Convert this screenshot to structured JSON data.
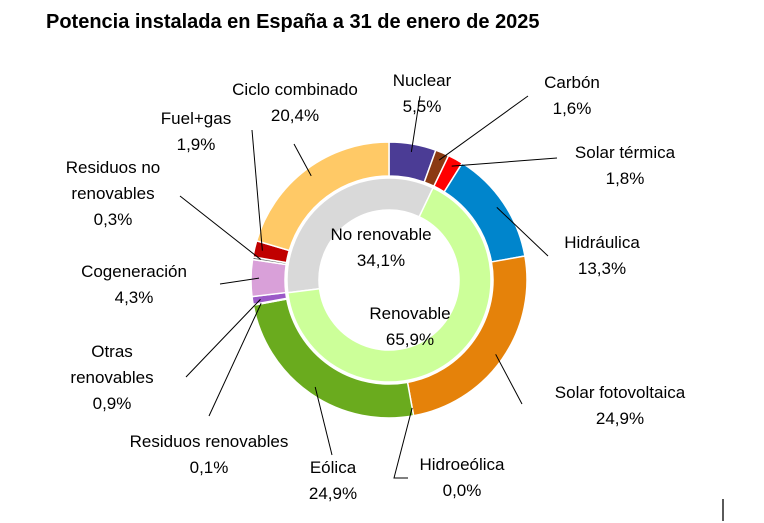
{
  "chart_data": {
    "type": "pie",
    "subtype": "double-donut",
    "title": "Potencia instalada en España a 31 de enero de 2025",
    "inner_ring": [
      {
        "name": "No renovable",
        "value": 34.1,
        "value_label": "34,1%",
        "color": "#d9d9d9"
      },
      {
        "name": "Renovable",
        "value": 65.9,
        "value_label": "65,9%",
        "color": "#ccff99"
      }
    ],
    "outer_ring": [
      {
        "name": "Nuclear",
        "value": 5.5,
        "value_label": "5,5%",
        "color": "#4b3c95"
      },
      {
        "name": "Carbón",
        "value": 1.6,
        "value_label": "1,6%",
        "color": "#8b3a12"
      },
      {
        "name": "Solar térmica",
        "value": 1.8,
        "value_label": "1,8%",
        "color": "#ff0000"
      },
      {
        "name": "Hidráulica",
        "value": 13.3,
        "value_label": "13,3%",
        "color": "#0085cc"
      },
      {
        "name": "Solar fotovoltaica",
        "value": 24.9,
        "value_label": "24,9%",
        "color": "#e5820a"
      },
      {
        "name": "Hidroeólica",
        "value": 0.0,
        "value_label": "0,0%",
        "color": "#1d5c1d"
      },
      {
        "name": "Eólica",
        "value": 24.9,
        "value_label": "24,9%",
        "color": "#6aab1e"
      },
      {
        "name": "Residuos renovables",
        "value": 0.1,
        "value_label": "0,1%",
        "color": "#3f8a3f"
      },
      {
        "name": "Otras renovables",
        "value": 0.9,
        "value_label": "0,9%",
        "color": "#9b59c8"
      },
      {
        "name": "Cogeneración",
        "value": 4.3,
        "value_label": "4,3%",
        "color": "#d9a0d9"
      },
      {
        "name": "Residuos no renovables",
        "value": 0.3,
        "value_label": "0,3%",
        "color": "#6b6b6b"
      },
      {
        "name": "Fuel+gas",
        "value": 1.9,
        "value_label": "1,9%",
        "color": "#c00000"
      },
      {
        "name": "Ciclo combinado",
        "value": 20.4,
        "value_label": "20,4%",
        "color": "#ffc966"
      }
    ]
  }
}
